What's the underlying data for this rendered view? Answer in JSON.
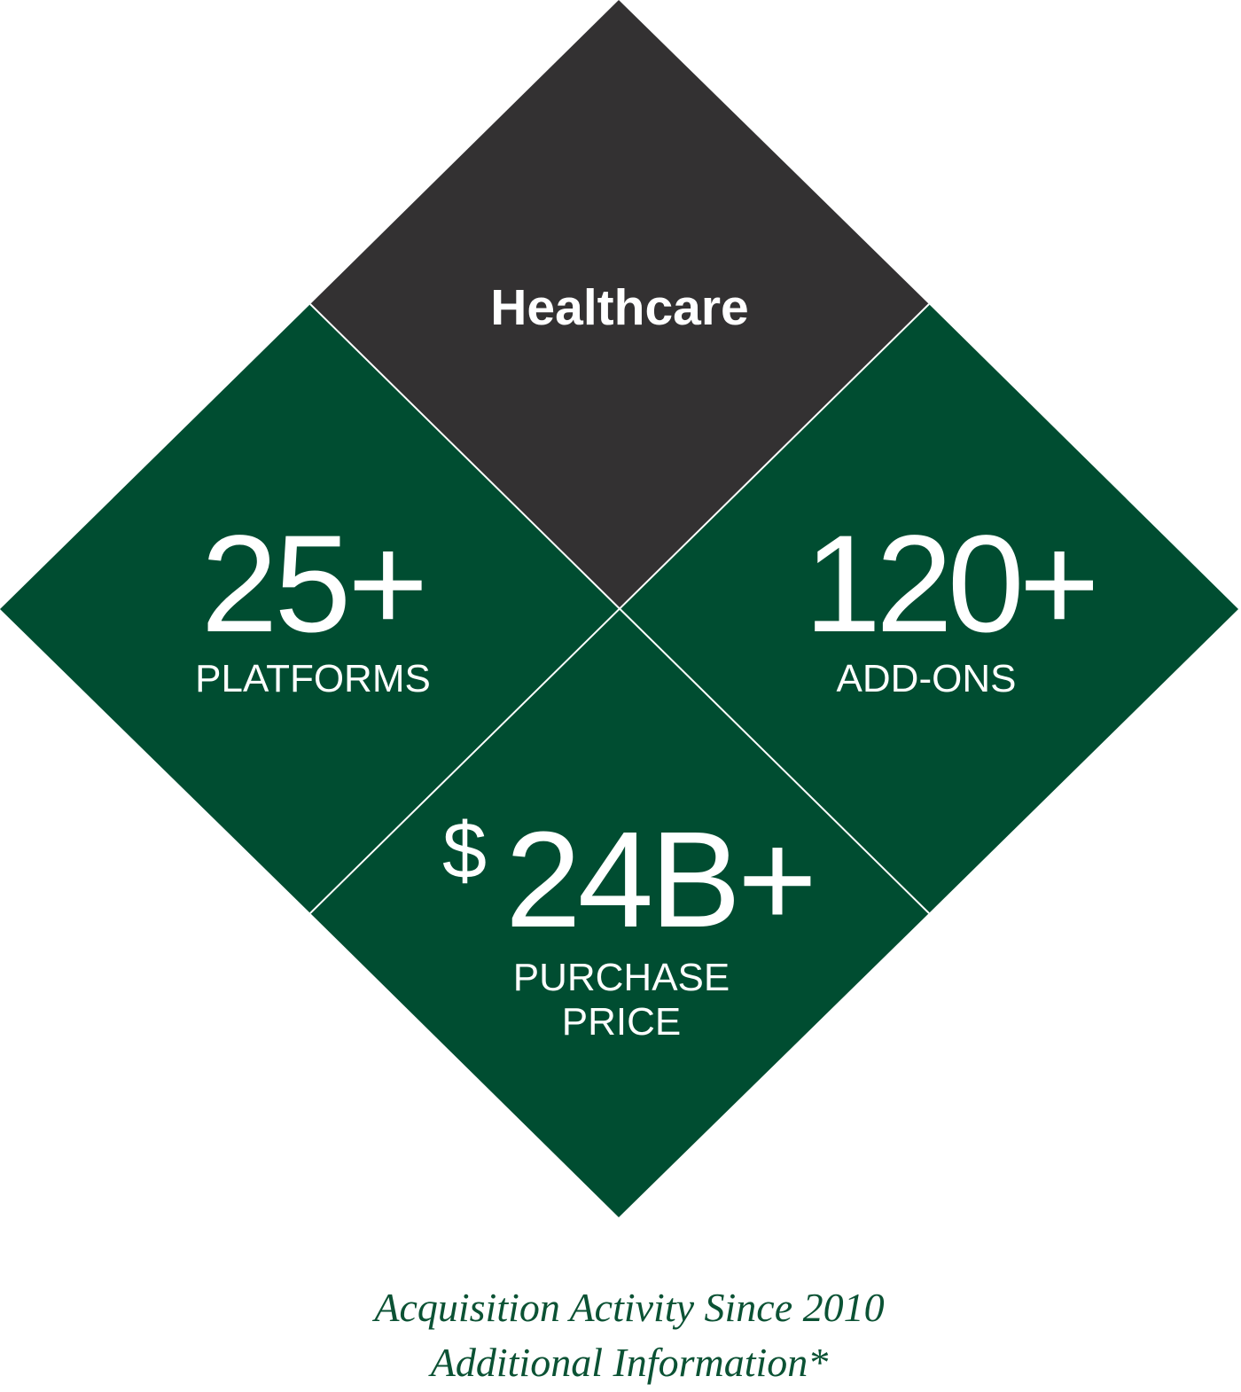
{
  "colors": {
    "top": "#333132",
    "green": "#004d31",
    "text": "#ffffff",
    "caption": "#0b5234",
    "divider": "#ffffff"
  },
  "top": {
    "label": "Healthcare"
  },
  "left": {
    "value": "25+",
    "label": "PLATFORMS"
  },
  "right": {
    "value": "120+",
    "label": "ADD-ONS"
  },
  "bottom": {
    "currency": "$",
    "value": "24B+",
    "label_line1": "PURCHASE",
    "label_line2": "PRICE"
  },
  "caption": {
    "line1": "Acquisition Activity Since 2010",
    "line2": "Additional Information*"
  }
}
